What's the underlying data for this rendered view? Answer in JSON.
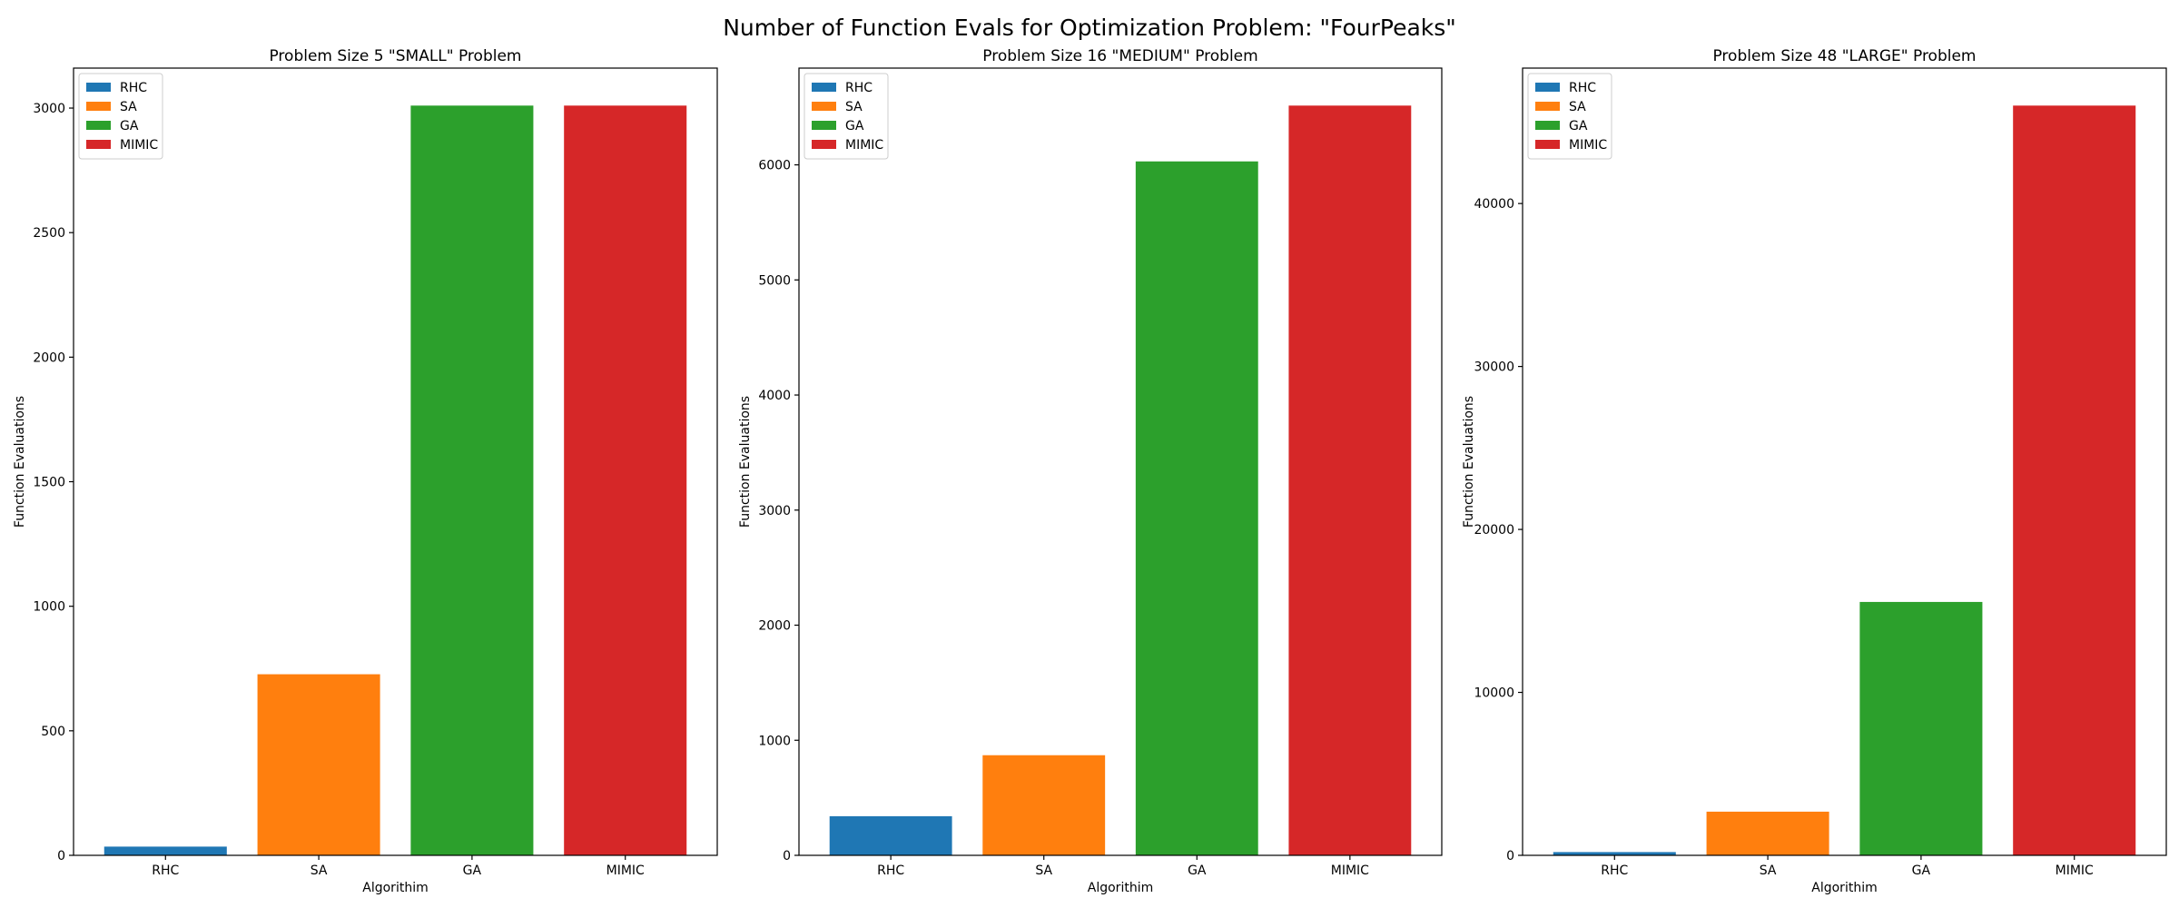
{
  "figure": {
    "suptitle": "Number of Function Evals for Optimization Problem: \"FourPeaks\""
  },
  "chart_data": [
    {
      "type": "bar",
      "title": "Problem Size 5 \"SMALL\" Problem",
      "xlabel": "Algorithim",
      "ylabel": "Function Evaluations",
      "categories": [
        "RHC",
        "SA",
        "GA",
        "MIMIC"
      ],
      "values": [
        35,
        727,
        3010,
        3010
      ],
      "colors": [
        "#1f77b4",
        "#ff7f0e",
        "#2ca02c",
        "#d62728"
      ],
      "ylim": [
        0,
        3160.5
      ],
      "yticks": [
        0,
        500,
        1000,
        1500,
        2000,
        2500,
        3000
      ],
      "legend": {
        "entries": [
          "RHC",
          "SA",
          "GA",
          "MIMIC"
        ],
        "placement": "upper left"
      },
      "grid": false
    },
    {
      "type": "bar",
      "title": "Problem Size 16 \"MEDIUM\" Problem",
      "xlabel": "Algorithim",
      "ylabel": "Function Evaluations",
      "categories": [
        "RHC",
        "SA",
        "GA",
        "MIMIC"
      ],
      "values": [
        340,
        870,
        6030,
        6515
      ],
      "colors": [
        "#1f77b4",
        "#ff7f0e",
        "#2ca02c",
        "#d62728"
      ],
      "ylim": [
        0,
        6840.75
      ],
      "yticks": [
        0,
        1000,
        2000,
        3000,
        4000,
        5000,
        6000
      ],
      "legend": {
        "entries": [
          "RHC",
          "SA",
          "GA",
          "MIMIC"
        ],
        "placement": "upper left"
      },
      "grid": false
    },
    {
      "type": "bar",
      "title": "Problem Size 48 \"LARGE\" Problem",
      "xlabel": "Algorithim",
      "ylabel": "Function Evaluations",
      "categories": [
        "RHC",
        "SA",
        "GA",
        "MIMIC"
      ],
      "values": [
        200,
        2680,
        15550,
        46010
      ],
      "colors": [
        "#1f77b4",
        "#ff7f0e",
        "#2ca02c",
        "#d62728"
      ],
      "ylim": [
        0,
        48310.5
      ],
      "yticks": [
        0,
        10000,
        20000,
        30000,
        40000
      ],
      "legend": {
        "entries": [
          "RHC",
          "SA",
          "GA",
          "MIMIC"
        ],
        "placement": "upper left"
      },
      "grid": false
    }
  ]
}
